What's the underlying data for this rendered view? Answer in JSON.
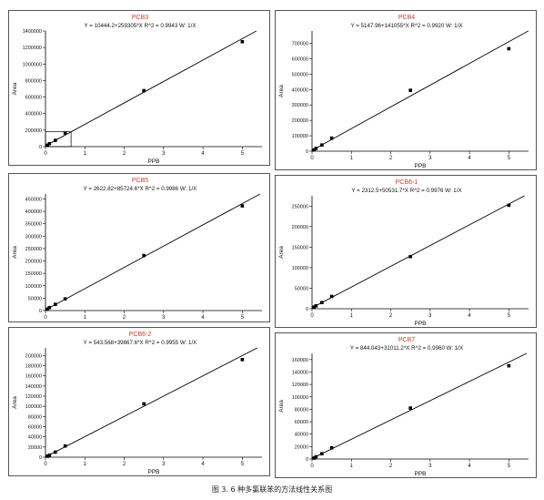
{
  "figure": {
    "caption": "图 3. 6 种多氯联苯的方法线性关系图"
  },
  "chart_data": [
    {
      "type": "scatter",
      "title": "PCB3",
      "subtitle": "Y = 10444.2+259305*X   R^2 = 0.9943   W: 1/X",
      "xlabel": "PPB",
      "ylabel": "Area",
      "xlim": [
        0,
        5.5
      ],
      "ylim": [
        0,
        1400000
      ],
      "xticks": [
        0,
        1,
        2,
        3,
        4,
        5
      ],
      "yticks": [
        0,
        200000,
        400000,
        600000,
        800000,
        1000000,
        1200000,
        1400000
      ],
      "points": [
        [
          0.05,
          17000
        ],
        [
          0.1,
          36000
        ],
        [
          0.25,
          76000
        ],
        [
          0.5,
          165000
        ],
        [
          2.5,
          678000
        ],
        [
          5,
          1270000
        ]
      ],
      "fit": {
        "intercept": 10444.2,
        "slope": 259305
      },
      "inset_box": {
        "x": [
          0,
          0.65
        ],
        "y": [
          0,
          180000
        ]
      }
    },
    {
      "type": "scatter",
      "title": "PCB4",
      "subtitle": "Y = 5147.96+141055*X   R^2 = 0.9920   W: 1/X",
      "xlabel": "PPB",
      "ylabel": "Area",
      "xlim": [
        0,
        5.5
      ],
      "ylim": [
        0,
        780000
      ],
      "xticks": [
        0,
        1,
        2,
        3,
        4,
        5
      ],
      "yticks": [
        0,
        100000,
        200000,
        300000,
        400000,
        500000,
        600000,
        700000
      ],
      "points": [
        [
          0.05,
          8000
        ],
        [
          0.1,
          18000
        ],
        [
          0.25,
          40000
        ],
        [
          0.5,
          85000
        ],
        [
          2.5,
          395000
        ],
        [
          5,
          665000
        ]
      ],
      "fit": {
        "intercept": 5147.96,
        "slope": 141055
      }
    },
    {
      "type": "scatter",
      "title": "PCB5",
      "subtitle": "Y = 2622.82+85724.6*X   R^2 = 0.9986   W: 1/X",
      "xlabel": "",
      "ylabel": "Area",
      "xlim": [
        0,
        5.5
      ],
      "ylim": [
        0,
        470000
      ],
      "xticks": [
        0,
        1,
        2,
        3,
        4,
        5
      ],
      "yticks": [
        0,
        50000,
        100000,
        150000,
        200000,
        250000,
        300000,
        350000,
        400000,
        450000
      ],
      "points": [
        [
          0.05,
          6000
        ],
        [
          0.1,
          12000
        ],
        [
          0.25,
          25000
        ],
        [
          0.5,
          47000
        ],
        [
          2.5,
          222000
        ],
        [
          5,
          422000
        ]
      ],
      "fit": {
        "intercept": 2622.82,
        "slope": 85724.6
      }
    },
    {
      "type": "scatter",
      "title": "PCB6-1",
      "subtitle": "Y = 2312.5+50531.7*X   R^2 = 0.9976   W: 1/X",
      "xlabel": "PPB",
      "ylabel": "Area",
      "xlim": [
        0,
        5.5
      ],
      "ylim": [
        0,
        275000
      ],
      "xticks": [
        0,
        1,
        2,
        3,
        4,
        5
      ],
      "yticks": [
        0,
        50000,
        100000,
        150000,
        200000,
        250000
      ],
      "points": [
        [
          0.05,
          4000
        ],
        [
          0.1,
          7000
        ],
        [
          0.25,
          15000
        ],
        [
          0.5,
          30000
        ],
        [
          2.5,
          127000
        ],
        [
          5,
          252000
        ]
      ],
      "fit": {
        "intercept": 2312.5,
        "slope": 50531.7
      }
    },
    {
      "type": "scatter",
      "title": "PCB6-2",
      "subtitle": "Y = 543.568+39867.6*X   R^2 = 0.9955   W: 1/X",
      "xlabel": "PPB",
      "ylabel": "Area",
      "xlim": [
        0,
        5.5
      ],
      "ylim": [
        0,
        215000
      ],
      "xticks": [
        0,
        1,
        2,
        3,
        4,
        5
      ],
      "yticks": [
        0,
        20000,
        40000,
        60000,
        80000,
        100000,
        120000,
        140000,
        160000,
        180000,
        200000
      ],
      "points": [
        [
          0.05,
          2000
        ],
        [
          0.1,
          4000
        ],
        [
          0.25,
          10000
        ],
        [
          0.5,
          22000
        ],
        [
          2.5,
          105000
        ],
        [
          5,
          192000
        ]
      ],
      "fit": {
        "intercept": 543.568,
        "slope": 39867.6
      }
    },
    {
      "type": "scatter",
      "title": "PCB7",
      "subtitle": "Y = 844.043+31011.2*X   R^2 = 0.9960   W: 1/X",
      "xlabel": "PPB",
      "ylabel": "Area",
      "xlim": [
        0,
        5.5
      ],
      "ylim": [
        0,
        170000
      ],
      "xticks": [
        0,
        1,
        2,
        3,
        4,
        5
      ],
      "yticks": [
        0,
        20000,
        40000,
        60000,
        80000,
        100000,
        120000,
        140000,
        160000
      ],
      "points": [
        [
          0.05,
          1500
        ],
        [
          0.1,
          3500
        ],
        [
          0.25,
          8500
        ],
        [
          0.5,
          18000
        ],
        [
          2.5,
          82000
        ],
        [
          5,
          150000
        ]
      ],
      "fit": {
        "intercept": 844.043,
        "slope": 31011.2
      }
    }
  ]
}
